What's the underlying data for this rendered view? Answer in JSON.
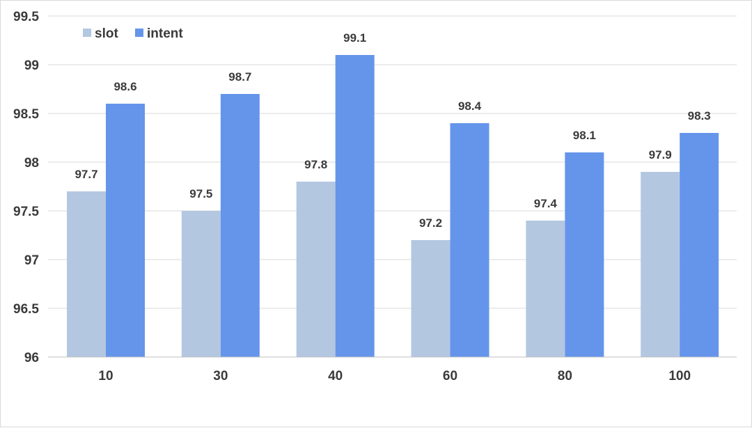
{
  "chart_data": {
    "type": "bar",
    "title": "",
    "xlabel": "",
    "ylabel": "",
    "categories": [
      "10",
      "30",
      "40",
      "60",
      "80",
      "100"
    ],
    "series": [
      {
        "name": "slot",
        "color": "#b4c7e1",
        "values": [
          97.7,
          97.5,
          97.8,
          97.2,
          97.4,
          97.9
        ]
      },
      {
        "name": "intent",
        "color": "#6495eb",
        "values": [
          98.6,
          98.7,
          99.1,
          98.4,
          98.1,
          98.3
        ]
      }
    ],
    "ylim": [
      96,
      99.5
    ],
    "yticks": [
      "96",
      "96.5",
      "97",
      "97.5",
      "98",
      "98.5",
      "99",
      "99.5"
    ],
    "grid": true,
    "legend_position": "top-left",
    "data_labels": true
  }
}
